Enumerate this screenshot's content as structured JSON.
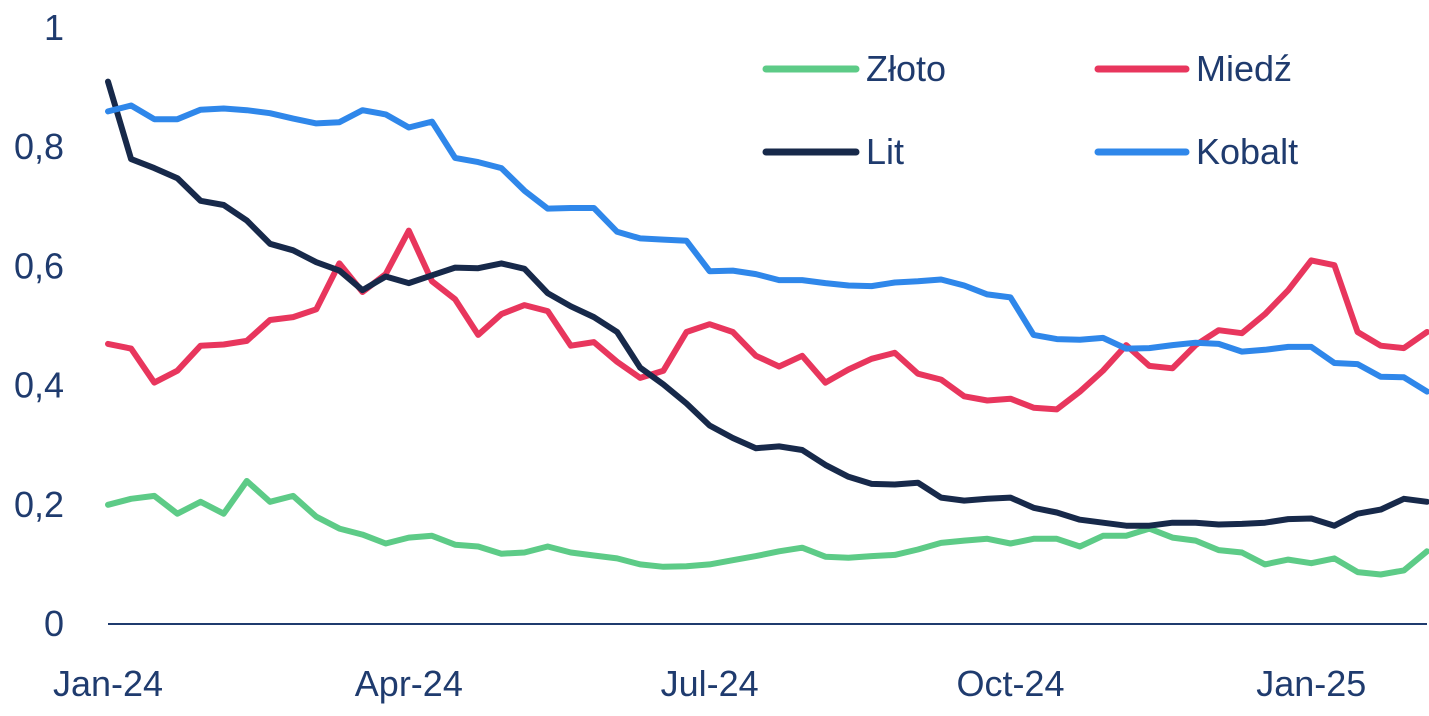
{
  "chart_data": {
    "type": "line",
    "title": "",
    "xlabel": "",
    "ylabel": "",
    "ylim": [
      0,
      1
    ],
    "y_ticks": [
      "0",
      "0,2",
      "0,4",
      "0,6",
      "0,8",
      "1"
    ],
    "y_tick_values": [
      0,
      0.2,
      0.4,
      0.6,
      0.8,
      1
    ],
    "x_tick_labels": [
      "Jan-24",
      "Apr-24",
      "Jul-24",
      "Oct-24",
      "Jan-25"
    ],
    "x_tick_index": [
      0,
      13,
      26,
      39,
      52
    ],
    "x_count": 58,
    "grid": false,
    "legend_position": "top-right",
    "series": [
      {
        "name": "Złoto",
        "color": "#5dcb87",
        "values": [
          0.2,
          0.21,
          0.215,
          0.185,
          0.205,
          0.185,
          0.24,
          0.205,
          0.215,
          0.18,
          0.16,
          0.15,
          0.135,
          0.145,
          0.148,
          0.133,
          0.13,
          0.118,
          0.12,
          0.13,
          0.12,
          0.115,
          0.11,
          0.1,
          0.096,
          0.097,
          0.1,
          0.107,
          0.114,
          0.122,
          0.128,
          0.113,
          0.111,
          0.114,
          0.116,
          0.125,
          0.136,
          0.14,
          0.143,
          0.135,
          0.143,
          0.143,
          0.13,
          0.148,
          0.148,
          0.16,
          0.145,
          0.14,
          0.124,
          0.12,
          0.1,
          0.108,
          0.102,
          0.11,
          0.087,
          0.083,
          0.09,
          0.122
        ]
      },
      {
        "name": "Miedź",
        "color": "#e8365d",
        "values": [
          0.47,
          0.462,
          0.405,
          0.425,
          0.467,
          0.469,
          0.475,
          0.51,
          0.515,
          0.528,
          0.605,
          0.557,
          0.587,
          0.66,
          0.575,
          0.545,
          0.485,
          0.52,
          0.535,
          0.525,
          0.467,
          0.473,
          0.44,
          0.413,
          0.425,
          0.49,
          0.503,
          0.49,
          0.45,
          0.432,
          0.45,
          0.405,
          0.427,
          0.445,
          0.455,
          0.42,
          0.41,
          0.382,
          0.375,
          0.378,
          0.363,
          0.36,
          0.39,
          0.425,
          0.468,
          0.433,
          0.429,
          0.468,
          0.493,
          0.488,
          0.52,
          0.56,
          0.61,
          0.602,
          0.49,
          0.467,
          0.463,
          0.49
        ]
      },
      {
        "name": "Lit",
        "color": "#17294a",
        "values": [
          0.91,
          0.78,
          0.765,
          0.748,
          0.71,
          0.703,
          0.677,
          0.638,
          0.627,
          0.607,
          0.593,
          0.56,
          0.583,
          0.572,
          0.585,
          0.598,
          0.597,
          0.605,
          0.596,
          0.555,
          0.533,
          0.515,
          0.49,
          0.43,
          0.402,
          0.37,
          0.333,
          0.312,
          0.295,
          0.298,
          0.292,
          0.267,
          0.247,
          0.235,
          0.234,
          0.237,
          0.212,
          0.207,
          0.21,
          0.212,
          0.195,
          0.187,
          0.175,
          0.17,
          0.165,
          0.165,
          0.17,
          0.17,
          0.167,
          0.168,
          0.17,
          0.176,
          0.177,
          0.165,
          0.185,
          0.192,
          0.21,
          0.205
        ]
      },
      {
        "name": "Kobalt",
        "color": "#2f87ea",
        "values": [
          0.86,
          0.87,
          0.847,
          0.847,
          0.863,
          0.865,
          0.862,
          0.857,
          0.848,
          0.84,
          0.842,
          0.862,
          0.855,
          0.833,
          0.843,
          0.782,
          0.775,
          0.765,
          0.727,
          0.697,
          0.698,
          0.698,
          0.658,
          0.647,
          0.645,
          0.643,
          0.592,
          0.593,
          0.587,
          0.577,
          0.577,
          0.572,
          0.568,
          0.567,
          0.573,
          0.575,
          0.578,
          0.568,
          0.553,
          0.548,
          0.485,
          0.478,
          0.477,
          0.48,
          0.462,
          0.463,
          0.468,
          0.472,
          0.47,
          0.457,
          0.46,
          0.465,
          0.465,
          0.438,
          0.436,
          0.415,
          0.414,
          0.39
        ]
      }
    ]
  }
}
